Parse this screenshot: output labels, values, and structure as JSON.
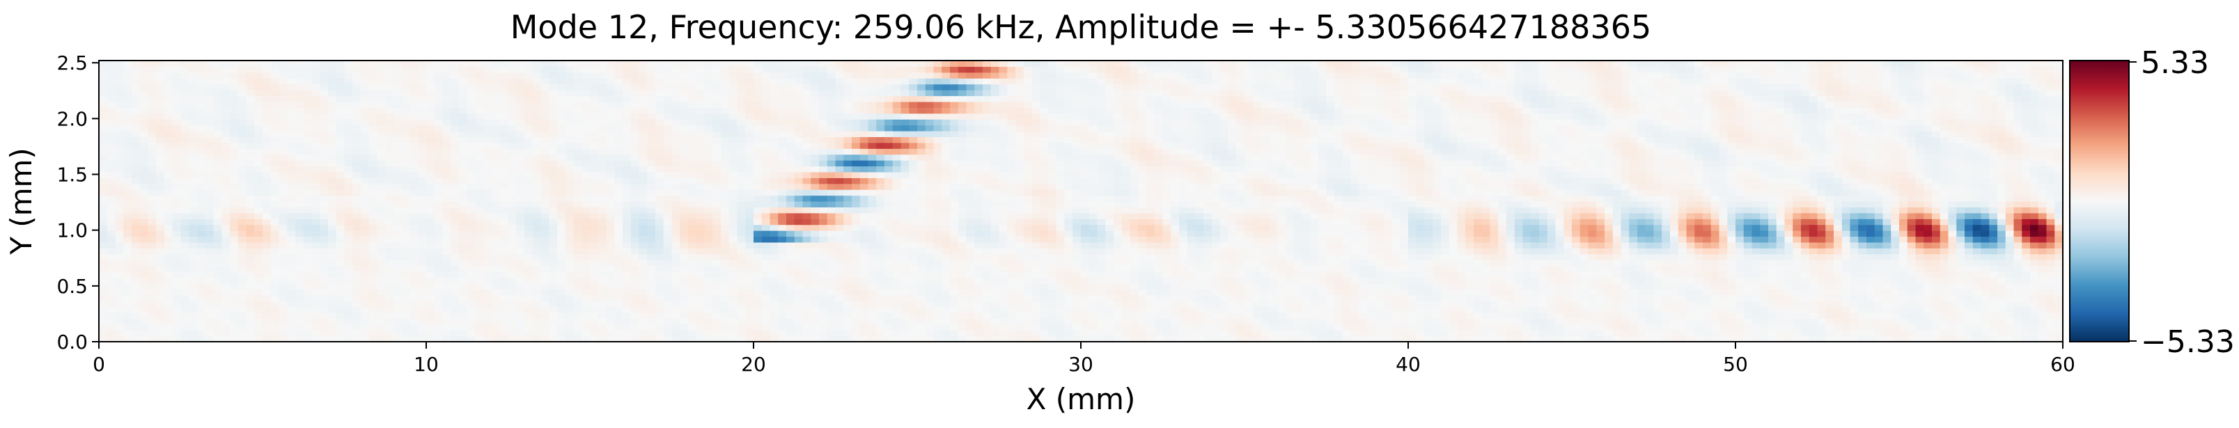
{
  "chart_data": {
    "type": "heatmap",
    "title": "Mode 12, Frequency: 259.06 kHz, Amplitude = +- 5.330566427188365",
    "xlabel": "X (mm)",
    "ylabel": "Y (mm)",
    "xlim": [
      0,
      60
    ],
    "ylim": [
      0,
      2.52
    ],
    "x_ticks": [
      0,
      10,
      20,
      30,
      40,
      50,
      60
    ],
    "x_tick_labels": [
      "0",
      "10",
      "20",
      "30",
      "40",
      "50",
      "60"
    ],
    "y_ticks": [
      0.0,
      0.5,
      1.0,
      1.5,
      2.0,
      2.5
    ],
    "y_tick_labels": [
      "0.0",
      "0.5",
      "1.0",
      "1.5",
      "2.0",
      "2.5"
    ],
    "colormap": "RdBu_r",
    "clim": [
      -5.330566427188365,
      5.330566427188365
    ],
    "colorbar": {
      "max_label": "5.33",
      "min_label": "−5.33",
      "colors": [
        "#053061",
        "#2166ac",
        "#4393c3",
        "#92c5de",
        "#d1e5f0",
        "#f7f7f7",
        "#fddbc7",
        "#f4a582",
        "#d6604d",
        "#b2182b",
        "#67001f"
      ]
    },
    "grid": false,
    "wave_features": [
      {
        "name": "guided-band",
        "y_center_mm": 1.0,
        "x_range_mm": [
          0,
          60
        ],
        "peak_amplitude_near_end": 5.33
      },
      {
        "name": "oblique-beam",
        "x_range_mm": [
          20.5,
          30.5
        ],
        "y_range_mm": [
          1.0,
          2.52
        ]
      }
    ]
  }
}
